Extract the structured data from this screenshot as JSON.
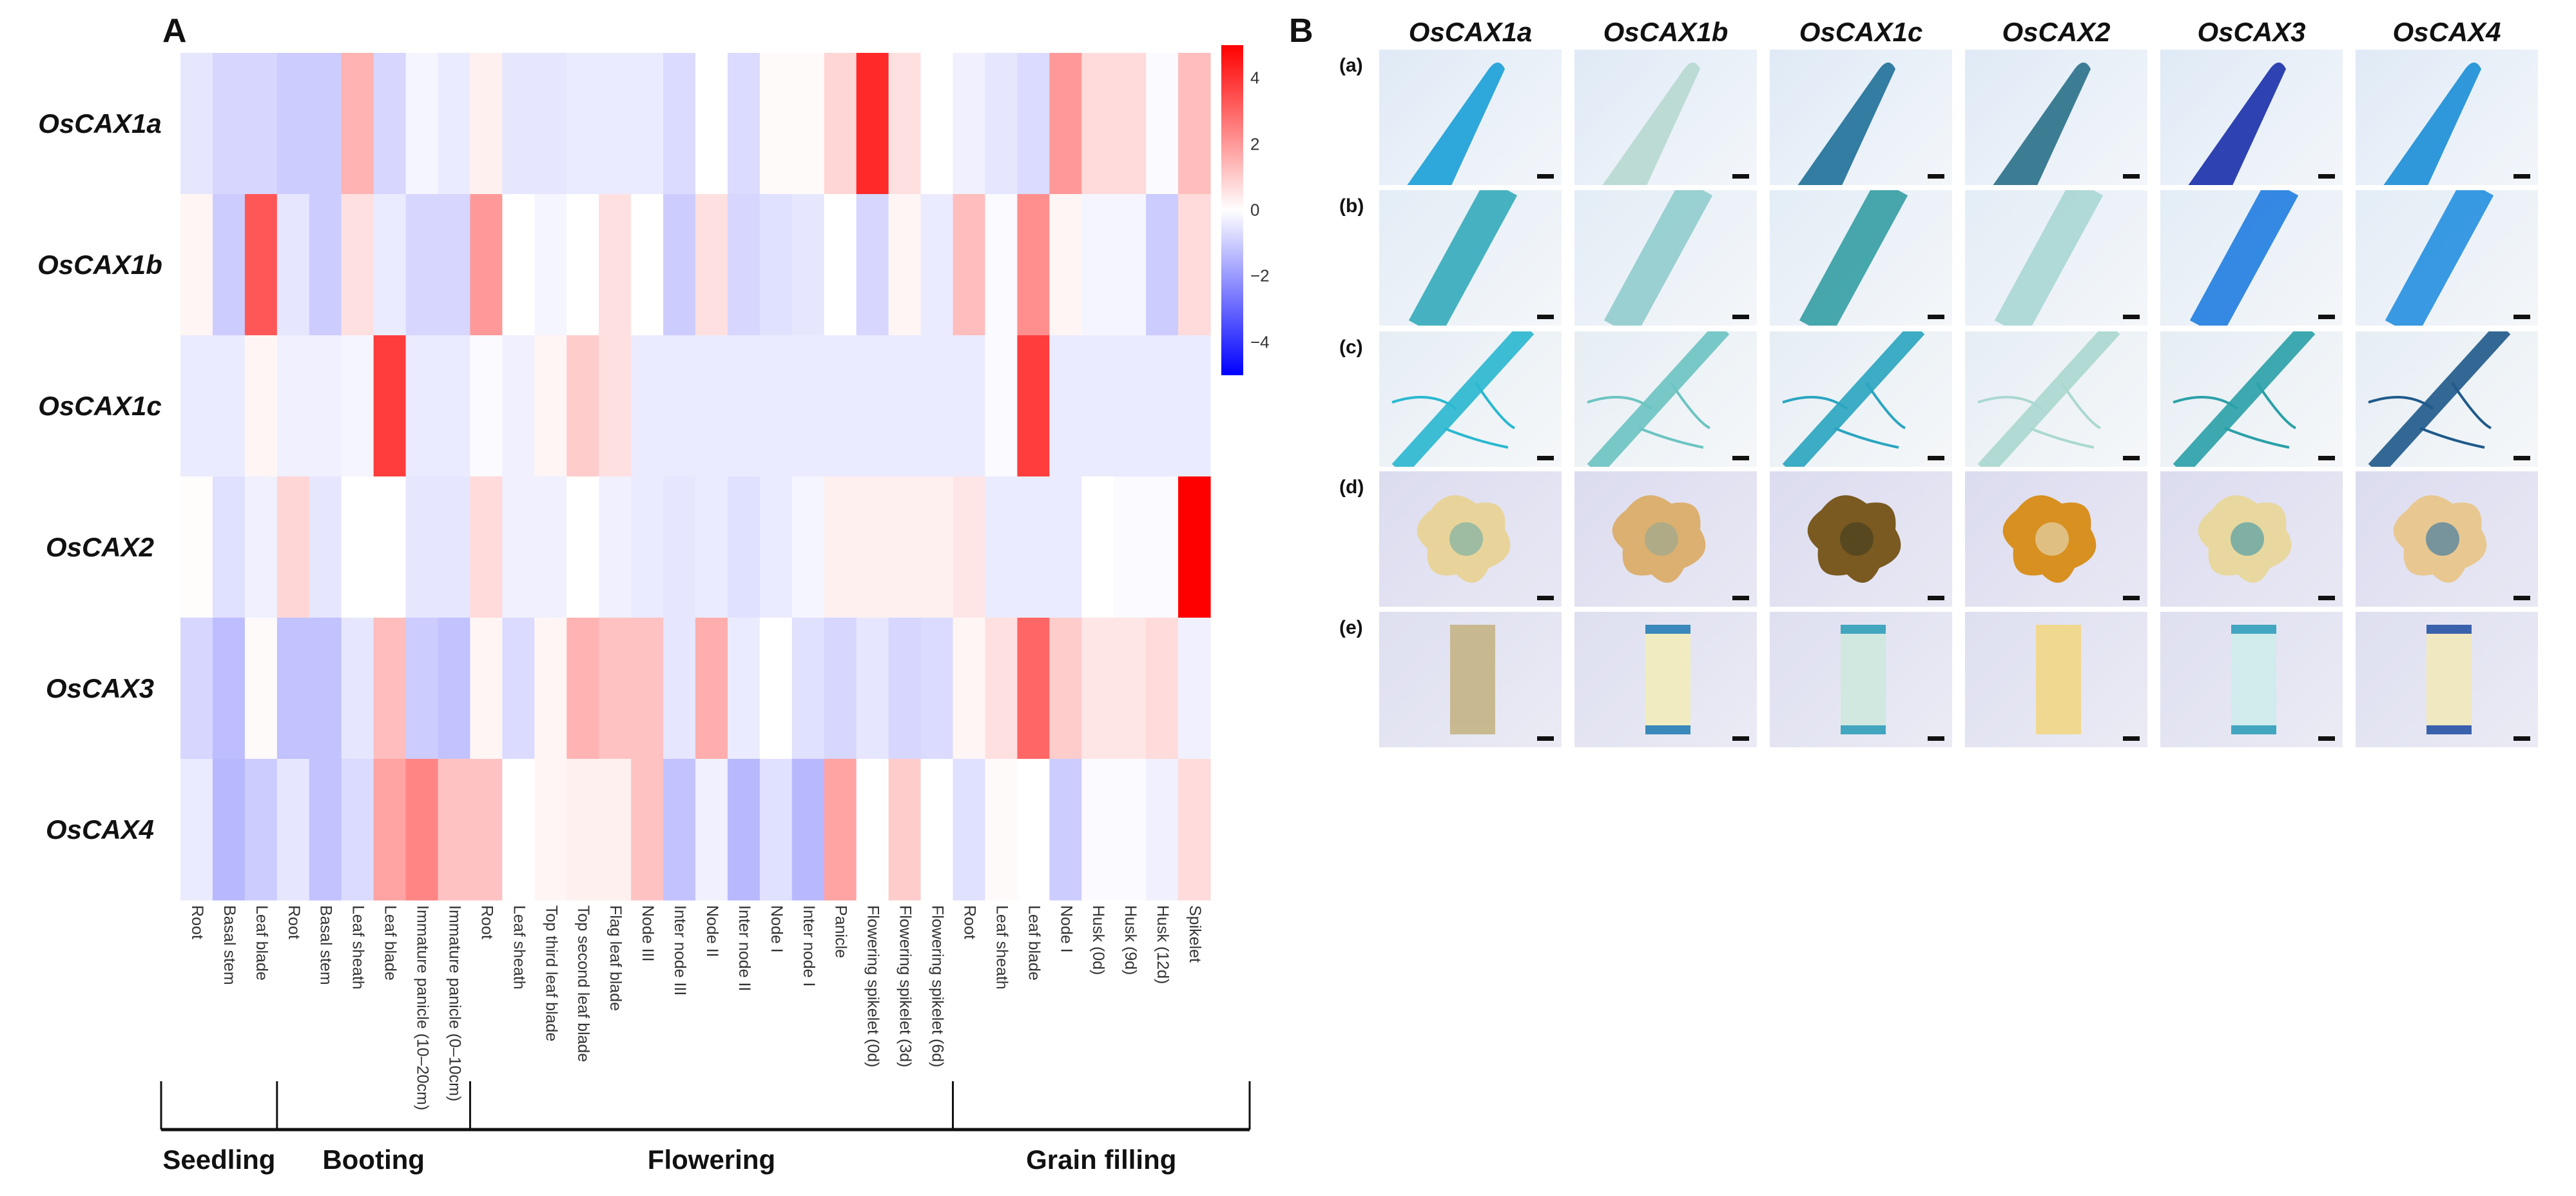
{
  "panel_a": {
    "label": "A"
  },
  "chart_data": {
    "type": "heatmap",
    "title": "",
    "rows": [
      "OsCAX1a",
      "OsCAX1b",
      "OsCAX1c",
      "OsCAX2",
      "OsCAX3",
      "OsCAX4"
    ],
    "columns": [
      "Root",
      "Basal stem",
      "Leaf blade",
      "Root",
      "Basal stem",
      "Leaf sheath",
      "Leaf blade",
      "Immature panicle (10–20cm)",
      "Immature panicle (0–10cm)",
      "Root",
      "Leaf sheath",
      "Top third leaf blade",
      "Top second leaf blade",
      "Flag leaf blade",
      "Node III",
      "Inter node III",
      "Node II",
      "Inter node II",
      "Node I",
      "Inter node I",
      "Panicle",
      "Flowering spikelet (0d)",
      "Flowering spikelet (3d)",
      "Flowering spikelet (6d)",
      "Root",
      "Leaf sheath",
      "Leaf blade",
      "Node I",
      "Husk (0d)",
      "Husk (9d)",
      "Husk (12d)",
      "Spikelet"
    ],
    "values": [
      [
        -0.5,
        -0.8,
        -0.8,
        -1.0,
        -1.0,
        1.5,
        -0.8,
        -0.2,
        -0.4,
        0.3,
        -0.5,
        -0.5,
        -0.4,
        -0.4,
        -0.4,
        -0.7,
        0.0,
        -0.7,
        0.1,
        0.1,
        0.8,
        4.2,
        0.6,
        0.0,
        -0.3,
        -0.5,
        -0.7,
        2.0,
        0.7,
        0.7,
        -0.1,
        1.3
      ],
      [
        0.2,
        -1.0,
        3.3,
        -0.5,
        -1.0,
        0.6,
        -0.4,
        -0.8,
        -0.8,
        2.0,
        0.0,
        -0.2,
        0.0,
        0.6,
        0.0,
        -1.0,
        0.6,
        -0.8,
        -0.6,
        -0.5,
        0.0,
        -0.8,
        0.2,
        -0.4,
        1.3,
        -0.1,
        2.2,
        0.2,
        -0.2,
        -0.2,
        -1.0,
        0.7
      ],
      [
        -0.4,
        -0.4,
        0.2,
        -0.3,
        -0.3,
        -0.2,
        3.8,
        -0.4,
        -0.4,
        -0.1,
        -0.3,
        0.2,
        1.0,
        0.6,
        -0.4,
        -0.4,
        -0.4,
        -0.4,
        -0.4,
        -0.4,
        -0.4,
        -0.4,
        -0.4,
        -0.4,
        -0.4,
        -0.1,
        3.8,
        -0.4,
        -0.4,
        -0.4,
        -0.4,
        -0.4
      ],
      [
        0.05,
        -0.6,
        -0.3,
        0.8,
        -0.5,
        0.0,
        0.0,
        -0.5,
        -0.5,
        0.7,
        -0.3,
        -0.3,
        0.0,
        -0.3,
        -0.4,
        -0.5,
        -0.4,
        -0.6,
        -0.4,
        -0.2,
        0.3,
        0.3,
        0.3,
        0.3,
        0.5,
        -0.4,
        -0.4,
        -0.4,
        0.0,
        -0.1,
        -0.1,
        5.0
      ],
      [
        -0.8,
        -1.3,
        0.1,
        -1.2,
        -1.2,
        -0.5,
        1.3,
        -1.0,
        -1.2,
        0.2,
        -0.7,
        0.2,
        1.5,
        1.2,
        1.2,
        -0.5,
        1.6,
        -0.4,
        0.0,
        -0.6,
        -0.8,
        -0.5,
        -0.8,
        -0.7,
        0.2,
        0.6,
        3.0,
        1.0,
        0.5,
        0.5,
        0.7,
        -0.3
      ],
      [
        -0.4,
        -1.4,
        -1.0,
        -0.5,
        -1.2,
        -0.7,
        1.8,
        2.4,
        1.2,
        1.2,
        0.0,
        0.2,
        0.3,
        0.3,
        1.2,
        -1.2,
        -0.3,
        -1.4,
        -0.6,
        -1.4,
        1.8,
        0.0,
        1.0,
        0.0,
        -0.6,
        0.1,
        0.0,
        -1.0,
        -0.1,
        -0.1,
        -0.3,
        0.7
      ]
    ],
    "colorbar": {
      "min": -5,
      "max": 5,
      "ticks": [
        4,
        2,
        0,
        -2,
        -4
      ],
      "tick_labels": [
        "4",
        "2",
        "0",
        "−2",
        "−4"
      ],
      "low_color": "#0000ff",
      "mid_color": "#ffffff",
      "high_color": "#ff0000"
    },
    "stages": [
      {
        "label": "Seedling",
        "first_col": 0,
        "last_col": 2
      },
      {
        "label": "Booting",
        "first_col": 3,
        "last_col": 8
      },
      {
        "label": "Flowering",
        "first_col": 9,
        "last_col": 23
      },
      {
        "label": "Grain filling",
        "first_col": 24,
        "last_col": 31
      }
    ]
  },
  "panel_b": {
    "label": "B",
    "genes": [
      "OsCAX1a",
      "OsCAX1b",
      "OsCAX1c",
      "OsCAX2",
      "OsCAX3",
      "OsCAX4"
    ],
    "tissues": [
      "(a)",
      "(b)",
      "(c)",
      "(d)",
      "(e)"
    ],
    "stain_colors": [
      [
        "#1a9fd6",
        "#b7d8d0",
        "#1f6f98",
        "#2a7088",
        "#1a2fa8",
        "#1a8ed6"
      ],
      [
        "#2aa8b8",
        "#8ccbcb",
        "#2a9aa0",
        "#a6d6d2",
        "#1577e0",
        "#1a8ae0"
      ],
      [
        "#2ab8d0",
        "#6cc4c2",
        "#2aa5c0",
        "#aad8d0",
        "#2aa0a8",
        "#1f5a8a"
      ],
      [
        "#5fa8a8",
        "#8aa89a",
        "#3a3a20",
        "#e8e6d4",
        "#2a90a8",
        "#1a6aa8"
      ],
      [
        "#c8b890",
        "#1a78b8",
        "#2a9ab8",
        "#f0d890",
        "#2a9ab8",
        "#1a4aa8"
      ]
    ],
    "tissue_colors": [
      [
        "#e8d49a",
        "#dcb070",
        "#7a5a20",
        "#d89020",
        "#e8d8a0",
        "#e8c890"
      ],
      [
        "#c8b890",
        "#f0ecc0",
        "#d0e8e0",
        "#f0d890",
        "#d0ecec",
        "#f0e8c0"
      ]
    ]
  }
}
